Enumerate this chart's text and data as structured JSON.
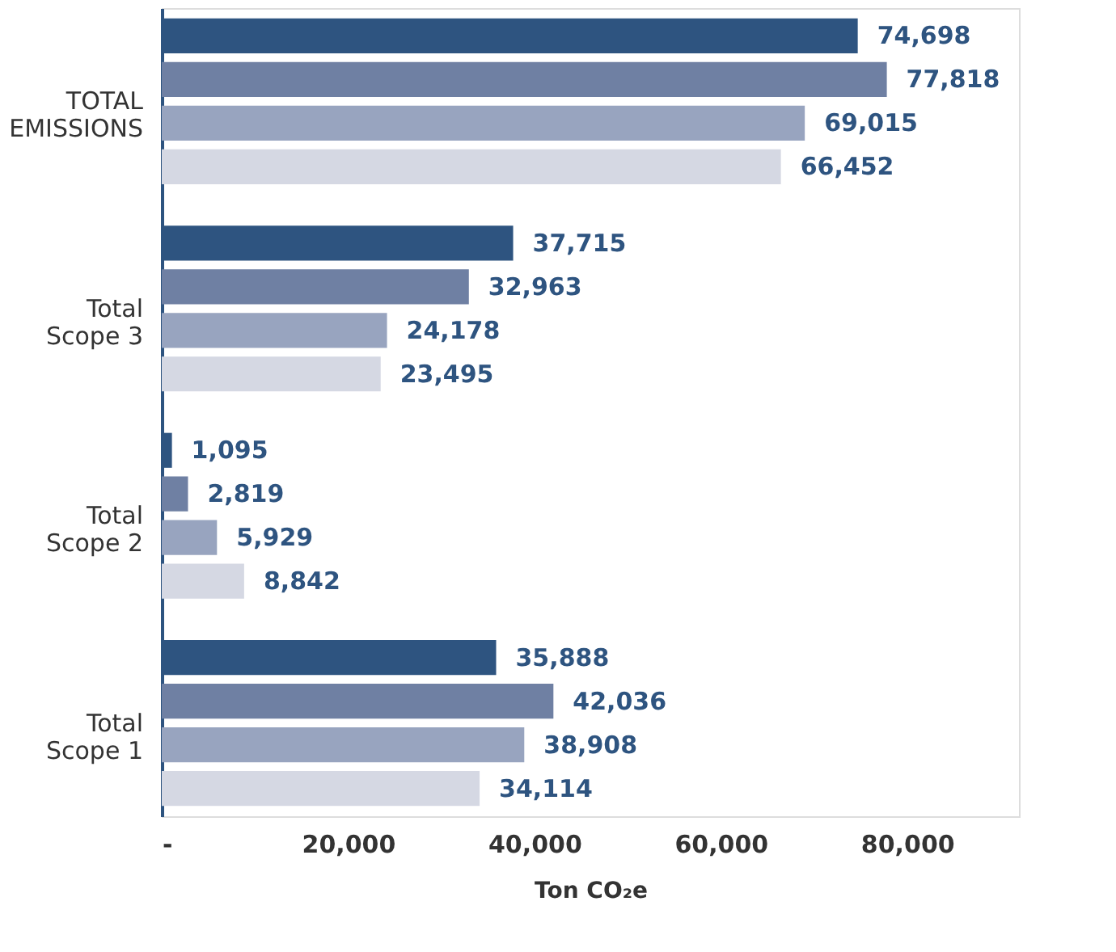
{
  "chart_data": {
    "type": "bar",
    "orientation": "horizontal",
    "xlabel": "Ton CO₂e",
    "categories": [
      "TOTAL EMISSIONS",
      "Total Scope 3",
      "Total Scope 2",
      "Total Scope 1"
    ],
    "series": [
      {
        "color": "#2e5480",
        "values": [
          74698,
          37715,
          1095,
          35888
        ],
        "value_labels": [
          "74,698",
          "37,715",
          "1,095",
          "35,888"
        ]
      },
      {
        "color": "#6f80a3",
        "values": [
          77818,
          32963,
          2819,
          42036
        ],
        "value_labels": [
          "77,818",
          "32,963",
          "2,819",
          "42,036"
        ]
      },
      {
        "color": "#98a4bf",
        "values": [
          69015,
          24178,
          5929,
          38908
        ],
        "value_labels": [
          "69,015",
          "24,178",
          "5,929",
          "38,908"
        ]
      },
      {
        "color": "#d5d8e3",
        "values": [
          66452,
          23495,
          8842,
          34114
        ],
        "value_labels": [
          "66,452",
          "23,495",
          "8,842",
          "34,114"
        ]
      }
    ],
    "xlim": [
      0,
      92000
    ],
    "xticks": [
      {
        "value": 0,
        "label": "-"
      },
      {
        "value": 20000,
        "label": "20,000"
      },
      {
        "value": 40000,
        "label": "40,000"
      },
      {
        "value": 60000,
        "label": "60,000"
      },
      {
        "value": 80000,
        "label": "80,000"
      }
    ],
    "grid": false
  }
}
